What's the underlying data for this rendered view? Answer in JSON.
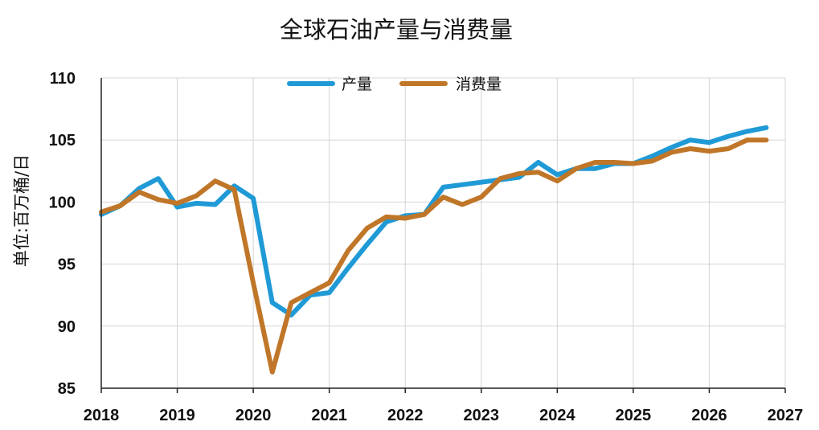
{
  "chart_data": {
    "type": "line",
    "title": "全球石油产量与消费量",
    "xlabel": "",
    "ylabel": "单位:百万桶/日",
    "x_ticks": [
      "2018",
      "2019",
      "2020",
      "2021",
      "2022",
      "2023",
      "2024",
      "2025",
      "2026",
      "2027"
    ],
    "xlim": [
      2018,
      2027
    ],
    "y_ticks": [
      "85",
      "90",
      "95",
      "100",
      "105",
      "110"
    ],
    "ylim": [
      85,
      110
    ],
    "grid": true,
    "legend_position": "top-center",
    "series": [
      {
        "name": "产量",
        "color": "#1f9ad6",
        "x": [
          2018.0,
          2018.25,
          2018.5,
          2018.75,
          2019.0,
          2019.25,
          2019.5,
          2019.75,
          2020.0,
          2020.25,
          2020.5,
          2020.75,
          2021.0,
          2021.25,
          2021.5,
          2021.75,
          2022.0,
          2022.25,
          2022.5,
          2022.75,
          2023.0,
          2023.25,
          2023.5,
          2023.75,
          2024.0,
          2024.25,
          2024.5,
          2024.75,
          2025.0,
          2025.25,
          2025.5,
          2025.75,
          2026.0,
          2026.25,
          2026.5,
          2026.75
        ],
        "values": [
          99.0,
          99.7,
          101.1,
          101.9,
          99.6,
          99.9,
          99.8,
          101.3,
          100.3,
          91.9,
          90.9,
          92.5,
          92.7,
          94.7,
          96.6,
          98.4,
          98.9,
          99.0,
          101.2,
          101.4,
          101.6,
          101.8,
          102.0,
          103.2,
          102.2,
          102.7,
          102.7,
          103.1,
          103.1,
          103.7,
          104.4,
          105.0,
          104.8,
          105.3,
          105.7,
          106.0
        ]
      },
      {
        "name": "消费量",
        "color": "#c07628",
        "x": [
          2018.0,
          2018.25,
          2018.5,
          2018.75,
          2019.0,
          2019.25,
          2019.5,
          2019.75,
          2020.0,
          2020.25,
          2020.5,
          2020.75,
          2021.0,
          2021.25,
          2021.5,
          2021.75,
          2022.0,
          2022.25,
          2022.5,
          2022.75,
          2023.0,
          2023.25,
          2023.5,
          2023.75,
          2024.0,
          2024.25,
          2024.5,
          2024.75,
          2025.0,
          2025.25,
          2025.5,
          2025.75,
          2026.0,
          2026.25,
          2026.5,
          2026.75
        ],
        "values": [
          99.2,
          99.7,
          100.8,
          100.2,
          99.9,
          100.5,
          101.7,
          101.0,
          93.5,
          86.3,
          91.9,
          92.7,
          93.5,
          96.1,
          97.9,
          98.8,
          98.7,
          99.0,
          100.4,
          99.8,
          100.4,
          101.9,
          102.3,
          102.4,
          101.7,
          102.7,
          103.2,
          103.2,
          103.1,
          103.3,
          104.0,
          104.3,
          104.1,
          104.3,
          105.0,
          105.0
        ]
      }
    ]
  }
}
